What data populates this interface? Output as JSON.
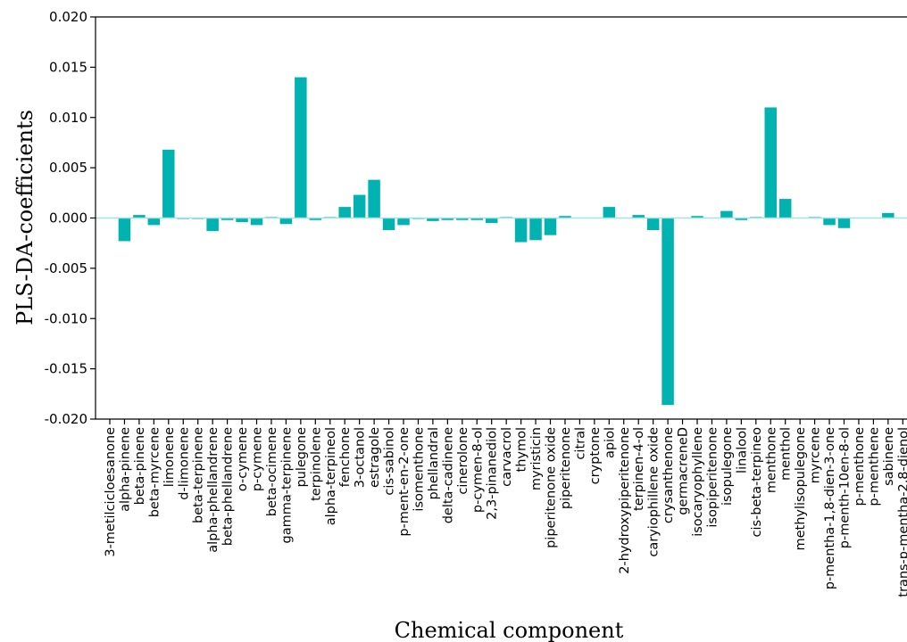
{
  "chart_data": {
    "type": "bar",
    "xlabel": "Chemical component",
    "ylabel": "PLS-DA-coefficients",
    "ylim": [
      -0.02,
      0.02
    ],
    "yticks": [
      "0.020",
      "0.015",
      "0.010",
      "0.005",
      "0.000",
      "-0.005",
      "-0.010",
      "-0.015",
      "-0.020"
    ],
    "ytick_values": [
      0.02,
      0.015,
      0.01,
      0.005,
      0.0,
      -0.005,
      -0.01,
      -0.015,
      -0.02
    ],
    "bar_color": "#00b2b0",
    "zero_line_color": "#9fe3e3",
    "grid": false,
    "categories": [
      "3-metilcicloesanone",
      "alpha-pinene",
      "beta-pinene",
      "beta-myrcene",
      "limonene",
      "d-limonene",
      "beta-terpinene",
      "alpha-phellandrene",
      "beta-phellandrene",
      "o-cymene",
      "p-cymene",
      "beta-ocimene",
      "gamma-terpinene",
      "pulegone",
      "terpinolene",
      "alpha-terpineol",
      "fenchone",
      "3-octanol",
      "estragole",
      "cis-sabinol",
      "p-ment-en-2-one",
      "isomenthone",
      "phellandral",
      "delta-cadinene",
      "cinerolone",
      "p-cymen-8-ol",
      "2,3-pinanediol",
      "carvacrol",
      "thymol",
      "myristicin",
      "piperitenone oxide",
      "piperitenone",
      "citral",
      "cryptone",
      "apiol",
      "2-hydroxypiperitenone",
      "terpinen-4-ol",
      "caryiophillene oxide",
      "crysanthenone",
      "germacreneD",
      "isocaryophyllene",
      "isopiperitenone",
      "isopulegone",
      "linalool",
      "cis-beta-terpineo",
      "menthone",
      "menthol",
      "methylisopulegone",
      "myrcene",
      "p-mentha-1,8-dien-3-one",
      "p-menth-10en-8-ol",
      "p-menthone",
      "p-menthene",
      "sabinene",
      "trans-p-mentha-2,8-dienol"
    ],
    "values": [
      0.0,
      -0.0023,
      0.0003,
      -0.0007,
      0.0068,
      -0.0001,
      -0.0001,
      -0.0013,
      -0.0002,
      -0.0004,
      -0.0007,
      0.0001,
      -0.0006,
      0.014,
      -0.0002,
      0.0001,
      0.0011,
      0.0023,
      0.0038,
      -0.0012,
      -0.0007,
      -0.0001,
      -0.0003,
      -0.0002,
      -0.0002,
      -0.0002,
      -0.0005,
      0.0001,
      -0.0024,
      -0.0022,
      -0.0017,
      0.0002,
      0.0,
      0.0,
      0.0011,
      0.0,
      0.0003,
      -0.0012,
      -0.0186,
      0.0,
      0.0002,
      0.0,
      0.0007,
      -0.0002,
      0.0001,
      0.011,
      0.0019,
      0.0,
      0.0001,
      -0.0007,
      -0.001,
      0.0,
      0.0,
      0.0005,
      0.0
    ]
  }
}
